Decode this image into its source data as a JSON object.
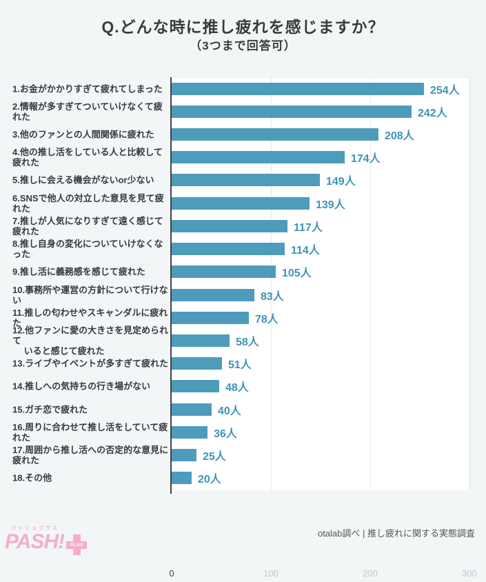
{
  "title": "Q.どんな時に推し疲れを感じますか？",
  "subtitle": "（3つまで回答可）",
  "footer": {
    "source": "otalab調べ | 推し疲れに関する実態調査"
  },
  "logo": {
    "katakana": "パッシュプラス",
    "name": "PASH!",
    "plus_label": "PLUS"
  },
  "colors": {
    "background": "#f3f6f7",
    "plot_background": "#ffffff",
    "bar": "#4d9cbb",
    "value_text": "#3e93b8",
    "label_text": "#333a41",
    "title_text": "#3b3b3b",
    "axis_line": "#414141",
    "gridline": "#e6e7ea",
    "tick_muted": "#c3c7ca",
    "logo_pink": "#f4aecb"
  },
  "chart_data": {
    "type": "bar",
    "orientation": "horizontal",
    "unit": "人",
    "categories": [
      "1.お金がかかりすぎて疲れてしまった",
      "2.情報が多すぎてついていけなくて疲れた",
      "3.他のファンとの人間関係に疲れた",
      "4.他の推し活をしている人と比較して疲れた",
      "5.推しに会える機会がないor少ない",
      "6.SNSで他人の対立した意見を見て疲れた",
      "7.推しが人気になりすぎて遠く感じて疲れた",
      "8.推し自身の変化についていけなくなった",
      "9.推し活に義務感を感じて疲れた",
      "10.事務所や運営の方針について行けない",
      "11.推しの匂わせやスキャンダルに疲れた",
      "12.他ファンに愛の大きさを見定められて\n　 いると感じて疲れた",
      "13.ライブやイベントが多すぎて疲れた",
      "14.推しへの気持ちの行き場がない",
      "15.ガチ恋で疲れた",
      "16.周りに合わせて推し活をしていて疲れた",
      "17.周囲から推し活への否定的な意見に疲れた",
      "18.その他"
    ],
    "values": [
      254,
      242,
      208,
      174,
      149,
      139,
      117,
      114,
      105,
      83,
      78,
      58,
      51,
      48,
      40,
      36,
      25,
      20
    ],
    "value_labels": [
      "254人",
      "242人",
      "208人",
      "174人",
      "149人",
      "139人",
      "117人",
      "114人",
      "105人",
      "83人",
      "78人",
      "58人",
      "51人",
      "48人",
      "40人",
      "36人",
      "25人",
      "20人"
    ],
    "xlabel": "",
    "ylabel": "",
    "xlim": [
      0,
      300
    ],
    "x_ticks": [
      0,
      100,
      200,
      300
    ],
    "grid": true,
    "legend": false
  }
}
